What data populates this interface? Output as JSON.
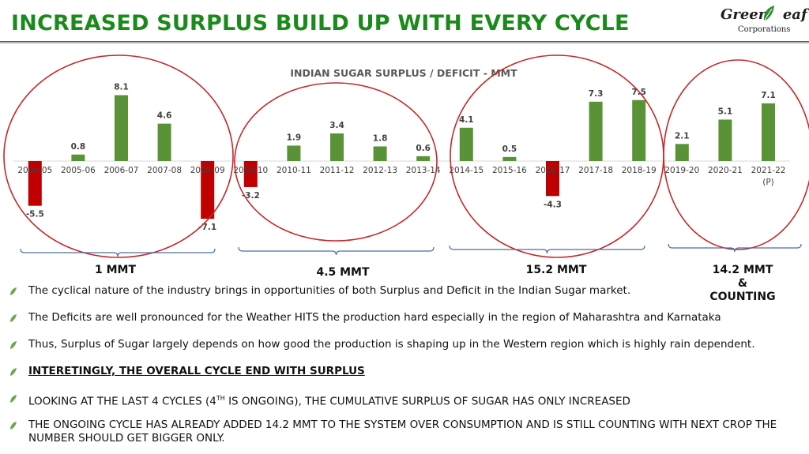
{
  "header": {
    "title": "INCREASED SURPLUS BUILD UP WITH EVERY CYCLE",
    "logo_name_a": "Green",
    "logo_name_b": "eaf",
    "logo_sub": "Corporations"
  },
  "colors": {
    "positive": "#5a9237",
    "negative": "#c00000",
    "title": "#1a8a1a",
    "circle": "#c62828",
    "brace": "#4a6fa5"
  },
  "chart_data": {
    "type": "bar",
    "title": "INDIAN SUGAR SURPLUS / DEFICIT - MMT",
    "categories": [
      "2004-05",
      "2005-06",
      "2006-07",
      "2007-08",
      "2008-09",
      "2009-10",
      "2010-11",
      "2011-12",
      "2012-13",
      "2013-14",
      "2014-15",
      "2015-16",
      "2016-17",
      "2017-18",
      "2018-19",
      "2019-20",
      "2020-21",
      "2021-22"
    ],
    "category_notes": [
      "",
      "",
      "",
      "",
      "",
      "",
      "",
      "",
      "",
      "",
      "",
      "",
      "",
      "",
      "",
      "",
      "",
      "(P)"
    ],
    "values": [
      -5.5,
      0.8,
      8.1,
      4.6,
      -7.1,
      -3.2,
      1.9,
      3.4,
      1.8,
      0.6,
      4.1,
      0.5,
      -4.3,
      7.3,
      7.5,
      2.1,
      5.1,
      7.1
    ],
    "value_labels": [
      "-5.5",
      "0.8",
      "8.1",
      "4.6",
      "-7.1",
      "-3.2",
      "1.9",
      "3.4",
      "1.8",
      "0.6",
      "4.1",
      "0.5",
      "-4.3",
      "7.3",
      "7.5",
      "2.1",
      "5.1",
      "7.1"
    ],
    "xlabel": "",
    "ylabel": "",
    "cycles": [
      {
        "label": [
          "1 MMT"
        ],
        "start": 0,
        "end": 4
      },
      {
        "label": [
          "4.5 MMT"
        ],
        "start": 5,
        "end": 9
      },
      {
        "label": [
          "15.2 MMT"
        ],
        "start": 10,
        "end": 14
      },
      {
        "label": [
          "14.2 MMT",
          "&",
          "COUNTING"
        ],
        "start": 15,
        "end": 17
      }
    ]
  },
  "bullets": [
    "The cyclical nature of the industry brings in opportunities of both Surplus and Deficit in the Indian Sugar market.",
    "The Deficits are well pronounced for the Weather HITS the production hard especially in the region of Maharashtra and Karnataka",
    "Thus, Surplus of Sugar largely depends on how good the production is shaping up in the Western region which is highly rain dependent.",
    "INTERETINGLY, THE OVERALL CYCLE END WITH SURPLUS ",
    {
      "pre": "LOOKING AT THE LAST 4 CYCLES (4",
      "sup": "TH",
      "post": " IS ONGOING), THE CUMULATIVE SURPLUS OF SUGAR HAS ONLY INCREASED"
    },
    "THE ONGOING CYCLE HAS ALREADY ADDED 14.2 MMT TO THE SYSTEM OVER CONSUMPTION AND IS STILL COUNTING WITH NEXT CROP THE NUMBER SHOULD GET BIGGER ONLY."
  ]
}
